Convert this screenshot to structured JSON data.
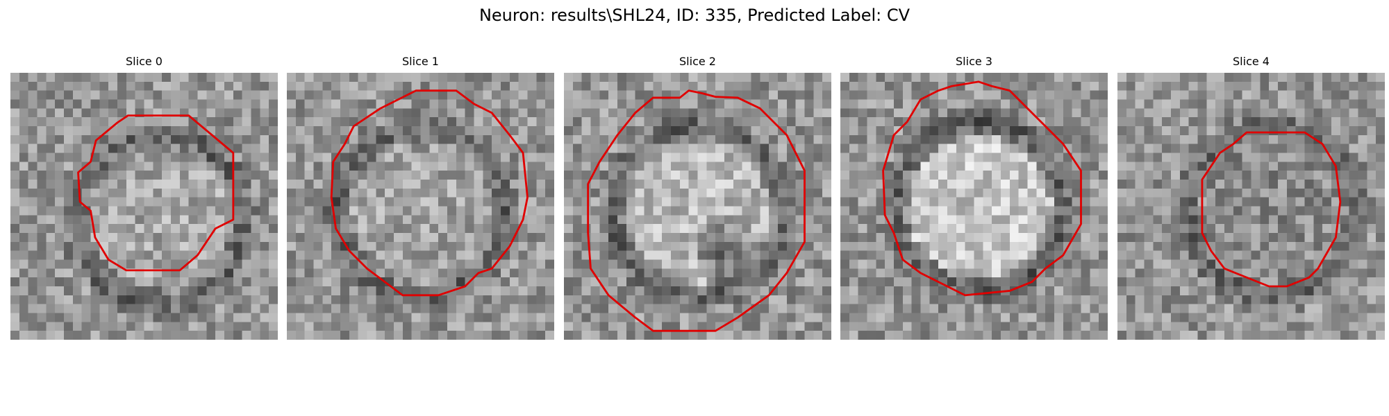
{
  "figure": {
    "title": "Neuron: results\\SHL24, ID: 335, Predicted Label: CV"
  },
  "panels": [
    {
      "title": "Slice 0",
      "ring_center": [
        0.56,
        0.55
      ],
      "inner_color": "#a8a8a8",
      "dark_spot": null
    },
    {
      "title": "Slice 1",
      "ring_center": [
        0.5,
        0.52
      ],
      "inner_color": "#a3a3a3",
      "dark_spot": null
    },
    {
      "title": "Slice 2",
      "ring_center": [
        0.5,
        0.52
      ],
      "inner_color": "#b8b8b8",
      "dark_spot": [
        0.6,
        0.66
      ]
    },
    {
      "title": "Slice 3",
      "ring_center": [
        0.52,
        0.5
      ],
      "inner_color": "#c6c6c6",
      "dark_spot": null
    },
    {
      "title": "Slice 4",
      "ring_center": [
        0.58,
        0.52
      ],
      "inner_color": "#8d8d8d",
      "dark_spot": null
    }
  ],
  "colors": {
    "contour": "#e00000"
  },
  "icons": [
    "grayscale-microscopy-image",
    "red-contour-outline"
  ]
}
